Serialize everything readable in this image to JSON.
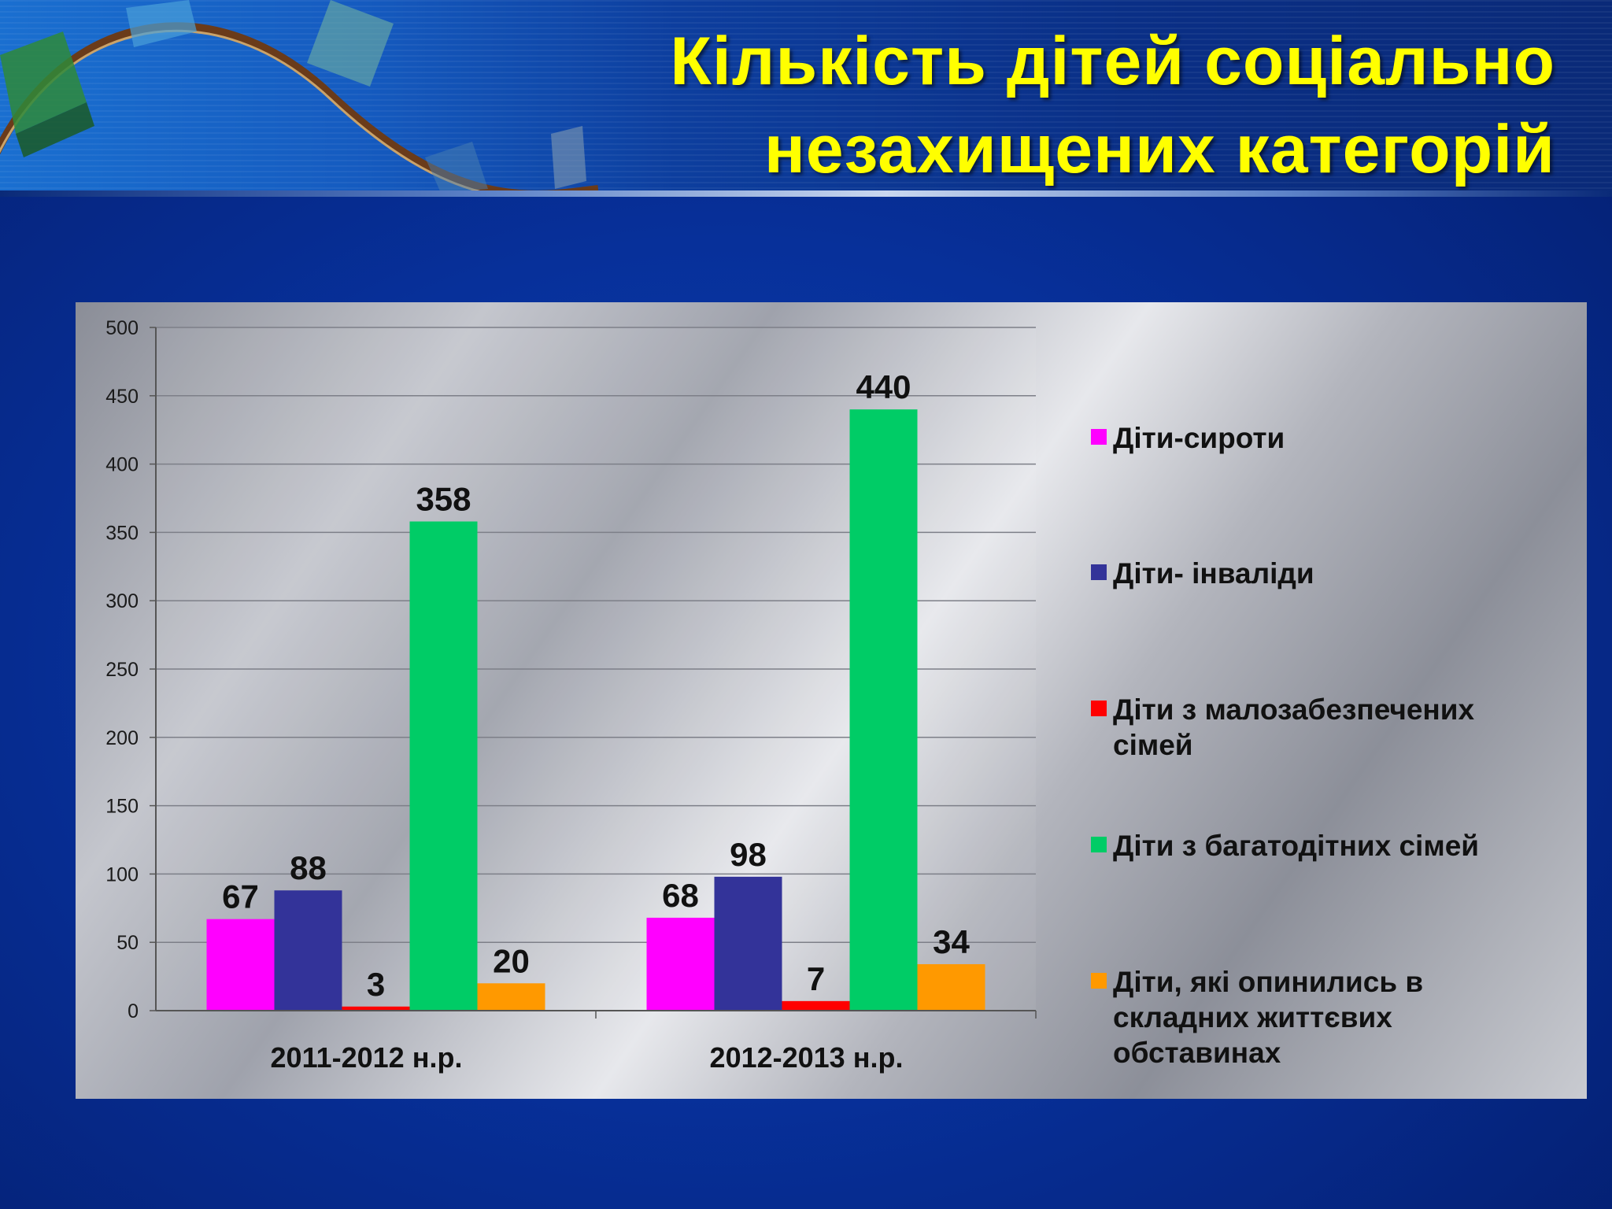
{
  "slide": {
    "title_line1": "Кількість дітей соціально",
    "title_line2": "незахищених категорій"
  },
  "colors": {
    "title": "#ffff00",
    "background": "#07309a",
    "series": [
      "#ff00ff",
      "#333399",
      "#ff0000",
      "#00cc66",
      "#ff9900"
    ]
  },
  "chart_data": {
    "type": "bar",
    "categories": [
      "2011-2012 н.р.",
      "2012-2013 н.р."
    ],
    "series": [
      {
        "name": "Діти-сироти",
        "values": [
          67,
          68
        ],
        "color": "#ff00ff"
      },
      {
        "name": "Діти- інваліди",
        "values": [
          88,
          98
        ],
        "color": "#333399"
      },
      {
        "name": "Діти з малозабезпечених сімей",
        "values": [
          3,
          7
        ],
        "color": "#ff0000"
      },
      {
        "name": "Діти з багатодітних сімей",
        "values": [
          358,
          440
        ],
        "color": "#00cc66"
      },
      {
        "name": "Діти, які опинились в складних життєвих обставинах",
        "values": [
          20,
          34
        ],
        "color": "#ff9900"
      }
    ],
    "ylim": [
      0,
      500
    ],
    "yticks": [
      0,
      50,
      100,
      150,
      200,
      250,
      300,
      350,
      400,
      450,
      500
    ],
    "grid": true,
    "legend_position": "right",
    "data_labels": true
  }
}
